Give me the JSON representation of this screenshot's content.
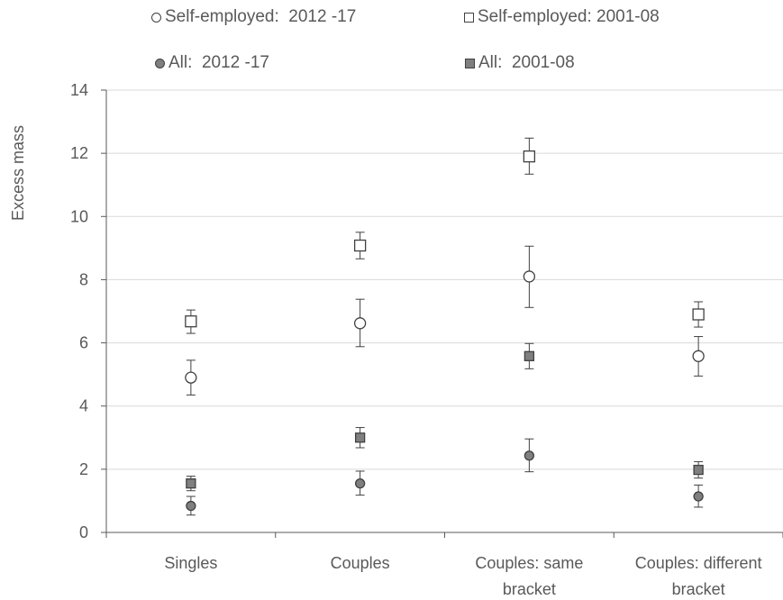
{
  "chart_data": {
    "type": "scatter",
    "title": "",
    "xlabel": "",
    "ylabel": "Excess mass",
    "ylim": [
      0,
      14
    ],
    "yticks": [
      0,
      2,
      4,
      6,
      8,
      10,
      12,
      14
    ],
    "grid": true,
    "legend_position": "top",
    "categories": [
      [
        "Singles"
      ],
      [
        "Couples"
      ],
      [
        "Couples: same",
        "bracket"
      ],
      [
        "Couples: different",
        "bracket"
      ]
    ],
    "series": [
      {
        "name": "Self-employed:  2012 -17",
        "marker": "open-circle",
        "values": [
          4.9,
          6.62,
          8.1,
          5.58
        ],
        "error_low": [
          4.35,
          5.88,
          7.12,
          4.95
        ],
        "error_high": [
          5.45,
          7.38,
          9.06,
          6.2
        ]
      },
      {
        "name": "Self-employed: 2001-08",
        "marker": "open-square",
        "values": [
          6.68,
          9.08,
          11.9,
          6.9
        ],
        "error_low": [
          6.3,
          8.66,
          11.34,
          6.5
        ],
        "error_high": [
          7.04,
          9.5,
          12.48,
          7.3
        ]
      },
      {
        "name": "All:  2012 -17",
        "marker": "filled-circle",
        "values": [
          0.84,
          1.55,
          2.43,
          1.14
        ],
        "error_low": [
          0.55,
          1.18,
          1.92,
          0.8
        ],
        "error_high": [
          1.14,
          1.94,
          2.96,
          1.5
        ]
      },
      {
        "name": "All:  2001-08",
        "marker": "filled-square",
        "values": [
          1.55,
          3.0,
          5.58,
          1.98
        ],
        "error_low": [
          1.32,
          2.68,
          5.18,
          1.72
        ],
        "error_high": [
          1.78,
          3.32,
          5.98,
          2.24
        ]
      }
    ],
    "colors": {
      "axis": "#595959",
      "grid": "#d9d9d9",
      "marker_edge": "#404040",
      "marker_fill": "#7f7f7f",
      "error_bar": "#404040"
    }
  }
}
